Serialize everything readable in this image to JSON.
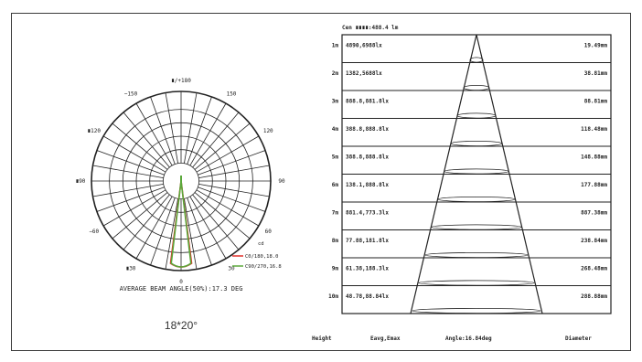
{
  "polar": {
    "angle_labels": [
      {
        "angle": 0,
        "text": "∎/+180"
      },
      {
        "angle": 30,
        "text": "150"
      },
      {
        "angle": -30,
        "text": "−150"
      },
      {
        "angle": 60,
        "text": "120"
      },
      {
        "angle": -60,
        "text": "∎120"
      },
      {
        "angle": 90,
        "text": "90"
      },
      {
        "angle": -90,
        "text": "∎90"
      },
      {
        "angle": 120,
        "text": "60"
      },
      {
        "angle": -120,
        "text": "−60"
      },
      {
        "angle": 150,
        "text": "30"
      },
      {
        "angle": -150,
        "text": "∎30"
      },
      {
        "angle": 180,
        "text": "0"
      }
    ],
    "legend_title": "cd",
    "legend": [
      {
        "label": "C0/180,18.0",
        "color": "#e0302a"
      },
      {
        "label": "C90/270,16.8",
        "color": "#5aa83a"
      }
    ],
    "caption": "AVERAGE BEAM ANGLE(50%):17.3 DEG",
    "beam_label": "18*20°"
  },
  "chart_data": [
    {
      "type": "line",
      "subtype": "polar-luminous-intensity",
      "angle_range": [
        -180,
        180
      ],
      "series": [
        {
          "name": "C0/180",
          "beam_angle": 18.0,
          "color": "#e0302a"
        },
        {
          "name": "C90/270",
          "beam_angle": 16.8,
          "color": "#5aa83a"
        }
      ],
      "average_beam_angle": 17.3
    },
    {
      "type": "table",
      "subtype": "illuminance-cone",
      "title": "Cen ∎∎∎∎:488.4 lm",
      "columns": [
        "Height",
        "Eavg,Emax",
        "Angle:16.84deg",
        "Diameter"
      ],
      "rows": [
        {
          "height": "1m",
          "eavg_emax": "4890,6988lx",
          "diameter": "19.49mm"
        },
        {
          "height": "2m",
          "eavg_emax": "1382,5688lx",
          "diameter": "38.81mm"
        },
        {
          "height": "3m",
          "eavg_emax": "888.8,881.8lx",
          "diameter": "88.81mm"
        },
        {
          "height": "4m",
          "eavg_emax": "388.8,888.8lx",
          "diameter": "118.48mm"
        },
        {
          "height": "5m",
          "eavg_emax": "388.8,888.8lx",
          "diameter": "148.88mm"
        },
        {
          "height": "6m",
          "eavg_emax": "138.1,888.8lx",
          "diameter": "177.88mm"
        },
        {
          "height": "7m",
          "eavg_emax": "881.4,773.3lx",
          "diameter": "887.38mm"
        },
        {
          "height": "8m",
          "eavg_emax": "77.88,181.8lx",
          "diameter": "238.84mm"
        },
        {
          "height": "9m",
          "eavg_emax": "61.38,188.3lx",
          "diameter": "268.48mm"
        },
        {
          "height": "10m",
          "eavg_emax": "48.78,88.84lx",
          "diameter": "288.88mm"
        }
      ]
    }
  ]
}
